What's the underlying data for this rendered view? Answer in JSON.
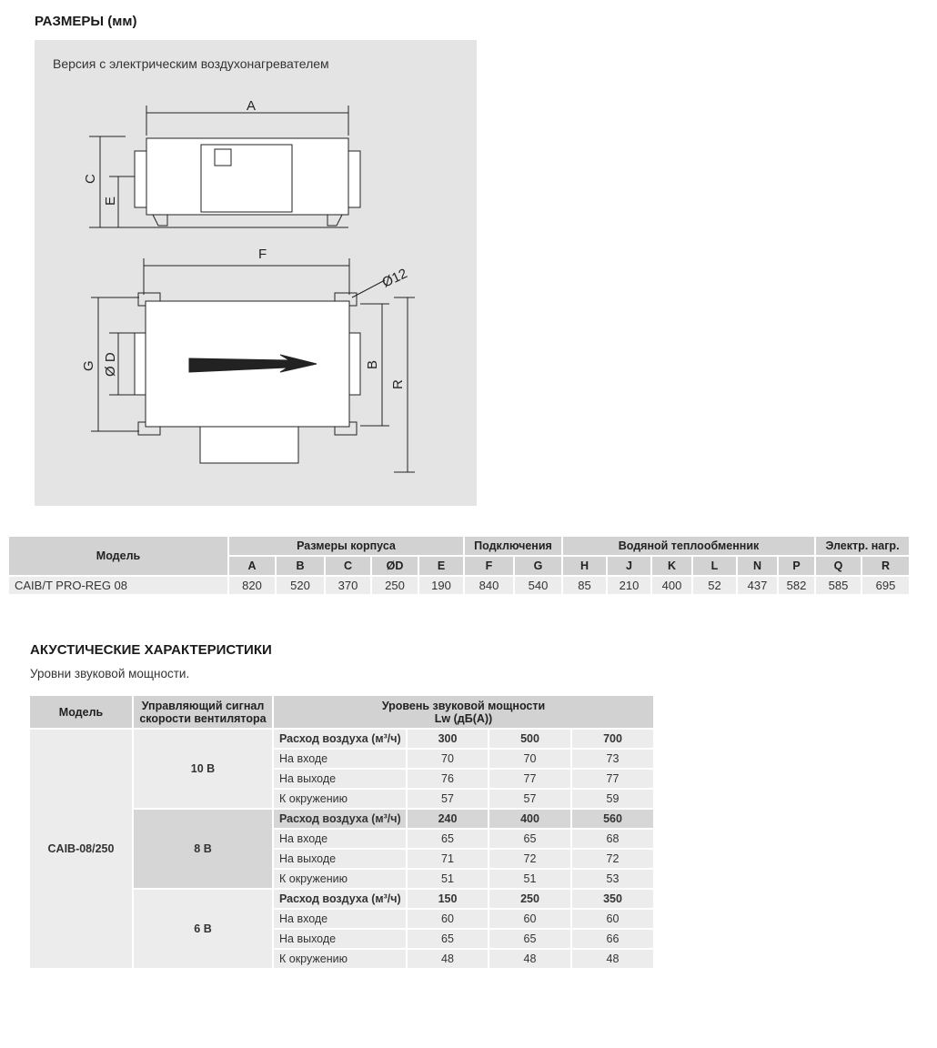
{
  "dimensions": {
    "title": "РАЗМЕРЫ (мм)",
    "caption": "Версия с электрическим воздухонагревателем",
    "labels": {
      "A": "A",
      "C": "C",
      "E": "E",
      "F": "F",
      "d12": "Ø12",
      "G": "G",
      "D": "Ø D",
      "B": "B",
      "R": "R"
    }
  },
  "dim_table": {
    "model_header": "Модель",
    "groups": [
      {
        "label": "Размеры корпуса",
        "span": 5
      },
      {
        "label": "Подключения",
        "span": 2
      },
      {
        "label": "Водяной теплообменник",
        "span": 6
      },
      {
        "label": "Электр. нагр.",
        "span": 2
      }
    ],
    "columns": [
      "A",
      "B",
      "C",
      "ØD",
      "E",
      "F",
      "G",
      "H",
      "J",
      "K",
      "L",
      "N",
      "P",
      "Q",
      "R"
    ],
    "rows": [
      {
        "model": "CAIB/T PRO-REG 08",
        "values": [
          "820",
          "520",
          "370",
          "250",
          "190",
          "840",
          "540",
          "85",
          "210",
          "400",
          "52",
          "437",
          "582",
          "585",
          "695"
        ]
      }
    ]
  },
  "acoustic": {
    "title": "АКУСТИЧЕСКИЕ ХАРАКТЕРИСТИКИ",
    "subtitle": "Уровни звуковой мощности.",
    "headers": {
      "model": "Модель",
      "signal": "Управляющий сигнал скорости вентилятора",
      "level": "Уровень звуковой мощности",
      "level_unit": "Lw (дБ(A))"
    },
    "model": "CAIB-08/250",
    "blocks": [
      {
        "signal": "10 В",
        "rows": [
          {
            "label": "Расход воздуха (м³/ч)",
            "values": [
              "300",
              "500",
              "700"
            ]
          },
          {
            "label": "На входе",
            "values": [
              "70",
              "70",
              "73"
            ]
          },
          {
            "label": "На выходе",
            "values": [
              "76",
              "77",
              "77"
            ]
          },
          {
            "label": "К окружению",
            "values": [
              "57",
              "57",
              "59"
            ]
          }
        ]
      },
      {
        "signal": "8 В",
        "rows": [
          {
            "label": "Расход воздуха (м³/ч)",
            "values": [
              "240",
              "400",
              "560"
            ]
          },
          {
            "label": "На входе",
            "values": [
              "65",
              "65",
              "68"
            ]
          },
          {
            "label": "На выходе",
            "values": [
              "71",
              "72",
              "72"
            ]
          },
          {
            "label": "К окружению",
            "values": [
              "51",
              "51",
              "53"
            ]
          }
        ]
      },
      {
        "signal": "6 В",
        "rows": [
          {
            "label": "Расход воздуха (м³/ч)",
            "values": [
              "150",
              "250",
              "350"
            ]
          },
          {
            "label": "На входе",
            "values": [
              "60",
              "60",
              "60"
            ]
          },
          {
            "label": "На выходе",
            "values": [
              "65",
              "65",
              "66"
            ]
          },
          {
            "label": "К окружению",
            "values": [
              "48",
              "48",
              "48"
            ]
          }
        ]
      }
    ]
  }
}
